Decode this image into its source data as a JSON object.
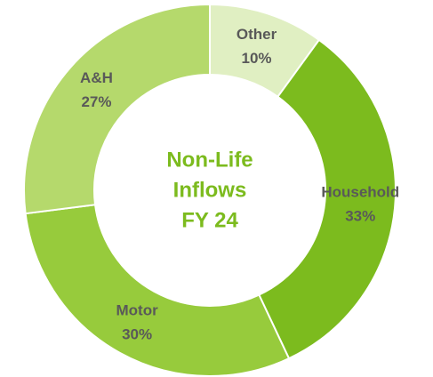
{
  "chart_data": {
    "type": "donut",
    "title": [
      "Non-Life",
      "Inflows",
      "FY 24"
    ],
    "categories": [
      "Other",
      "Household",
      "Motor",
      "A&H"
    ],
    "values": [
      10,
      33,
      30,
      27
    ],
    "value_labels": [
      "10%",
      "33%",
      "30%",
      "27%"
    ],
    "colors": [
      "#e0efc2",
      "#7cbb1e",
      "#97cb3c",
      "#b5d96c"
    ]
  }
}
